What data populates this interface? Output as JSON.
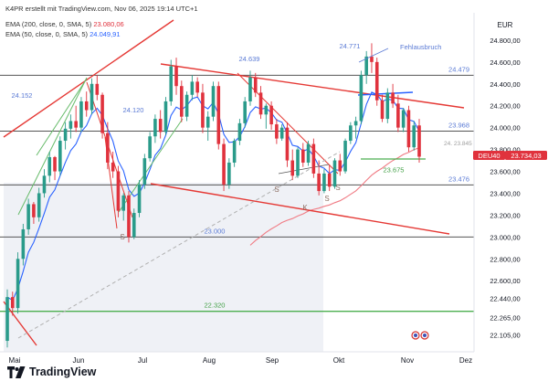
{
  "header": {
    "line1": "K4PR erstellt mit TradingView.com, Nov 06, 2025 19:14 UTC+1",
    "ema200_label": "EMA (200, close, 0, SMA, 5)",
    "ema200_value": "23.080,06",
    "ema50_label": "EMA (50, close, 0, SMA, 5)",
    "ema50_value": "24.049,91"
  },
  "brand": {
    "name": "TradingView",
    "logo_icon": "tradingview-logo-icon"
  },
  "colors": {
    "up": "#2a9b8a",
    "down": "#e0323d",
    "ema50": "#2962ff",
    "ema200": "#f07b84",
    "trend": "#e53935",
    "green_line": "#4caf50",
    "level_line": "#555555",
    "label_blue": "#5b7bd5",
    "label_green": "#43a047"
  },
  "chart_data": {
    "type": "candlestick",
    "symbol": "DEU40",
    "currency": "EUR",
    "last_price": "23.734,03",
    "x_ticks": [
      "Mai",
      "Jun",
      "Jul",
      "Aug",
      "Sep",
      "Okt",
      "Nov",
      "Dez"
    ],
    "y_ticks": [
      "24.800,00",
      "24.600,00",
      "24.400,00",
      "24.200,00",
      "24.000,00",
      "23.800,00",
      "23.600,00",
      "23.400,00",
      "23.200,00",
      "23.000,00",
      "22.800,00",
      "22.600,00",
      "22.440,00",
      "22.265,00",
      "22.105,00"
    ],
    "y_tick_values": [
      24800,
      24600,
      24400,
      24200,
      24000,
      23800,
      23600,
      23400,
      23200,
      23000,
      22800,
      22600,
      22440,
      22265,
      22105
    ],
    "ylim": [
      21950,
      25050
    ],
    "horizontal_levels": [
      {
        "value": 24479,
        "label": "24.479",
        "color": "label_blue"
      },
      {
        "value": 23968,
        "label": "23.968",
        "color": "label_blue"
      },
      {
        "value": 23476,
        "label": "23.476",
        "color": "label_blue"
      },
      {
        "value": 23000,
        "label": "23.000",
        "color": "label_blue"
      },
      {
        "value": 22320,
        "label": "22.320",
        "color": "label_green"
      },
      {
        "value": 23675,
        "label": "23.675",
        "color": "label_green"
      }
    ],
    "annotations": [
      {
        "text": "24.771",
        "kind": "price"
      },
      {
        "text": "24.639",
        "kind": "price"
      },
      {
        "text": "24.152",
        "kind": "price"
      },
      {
        "text": "24.120",
        "kind": "price"
      },
      {
        "text": "24. 23.845",
        "kind": "price"
      },
      {
        "text": "Fehlausbruch",
        "kind": "note"
      },
      {
        "text": "S",
        "kind": "marker"
      },
      {
        "text": "S",
        "kind": "marker"
      },
      {
        "text": "S",
        "kind": "marker"
      },
      {
        "text": "S",
        "kind": "marker"
      },
      {
        "text": "K",
        "kind": "marker"
      }
    ],
    "series": [
      {
        "name": "EMA (50, close, 0, SMA, 5)",
        "last": 24049.91
      },
      {
        "name": "EMA (200, close, 0, SMA, 5)",
        "last": 23080.06
      },
      {
        "name": "DEU40",
        "ohlc": [
          [
            22050,
            22520,
            21990,
            22450
          ],
          [
            22450,
            22500,
            22280,
            22350
          ],
          [
            22350,
            22860,
            22300,
            22800
          ],
          [
            22800,
            23120,
            22740,
            23070
          ],
          [
            23070,
            23350,
            23020,
            23300
          ],
          [
            23300,
            23320,
            23120,
            23180
          ],
          [
            23180,
            23450,
            23140,
            23400
          ],
          [
            23400,
            23620,
            23360,
            23560
          ],
          [
            23560,
            23780,
            23500,
            23730
          ],
          [
            23730,
            23740,
            23520,
            23600
          ],
          [
            23600,
            23920,
            23560,
            23880
          ],
          [
            23880,
            24050,
            23800,
            23990
          ],
          [
            23990,
            24120,
            23900,
            24060
          ],
          [
            24060,
            24200,
            23960,
            24000
          ],
          [
            24000,
            24280,
            23960,
            24240
          ],
          [
            24240,
            24330,
            24100,
            24160
          ],
          [
            24160,
            24450,
            24120,
            24400
          ],
          [
            24400,
            24480,
            24250,
            24300
          ],
          [
            24300,
            24320,
            23900,
            23950
          ],
          [
            23950,
            24050,
            23620,
            23680
          ],
          [
            23680,
            23780,
            23540,
            23600
          ],
          [
            23600,
            23650,
            23180,
            23240
          ],
          [
            23240,
            23400,
            23150,
            23380
          ],
          [
            23380,
            23420,
            22950,
            23000
          ],
          [
            23000,
            23260,
            22980,
            23220
          ],
          [
            23220,
            23520,
            23180,
            23480
          ],
          [
            23480,
            23760,
            23440,
            23720
          ],
          [
            23720,
            23960,
            23690,
            23920
          ],
          [
            23920,
            24120,
            23860,
            24080
          ],
          [
            24080,
            24160,
            23900,
            23960
          ],
          [
            23960,
            24280,
            23930,
            24240
          ],
          [
            24240,
            24620,
            24200,
            24560
          ],
          [
            24560,
            24640,
            24300,
            24380
          ],
          [
            24380,
            24430,
            24050,
            24100
          ],
          [
            24100,
            24330,
            24060,
            24300
          ],
          [
            24300,
            24480,
            24250,
            24420
          ],
          [
            24420,
            24460,
            24280,
            24320
          ],
          [
            24320,
            24400,
            23950,
            24000
          ],
          [
            24000,
            24150,
            23880,
            24100
          ],
          [
            24100,
            24420,
            24060,
            24380
          ],
          [
            24380,
            24420,
            23800,
            23850
          ],
          [
            23850,
            23900,
            23420,
            23480
          ],
          [
            23480,
            23720,
            23440,
            23680
          ],
          [
            23680,
            23900,
            23640,
            23880
          ],
          [
            23880,
            24080,
            23840,
            24040
          ],
          [
            24040,
            24280,
            24000,
            24240
          ],
          [
            24240,
            24520,
            24200,
            24460
          ],
          [
            24460,
            24500,
            24280,
            24320
          ],
          [
            24320,
            24380,
            24080,
            24120
          ],
          [
            24120,
            24220,
            23990,
            24200
          ],
          [
            24200,
            24240,
            23980,
            24030
          ],
          [
            24030,
            24080,
            23850,
            23900
          ],
          [
            23900,
            24030,
            23880,
            24000
          ],
          [
            24000,
            24050,
            23640,
            23700
          ],
          [
            23700,
            23800,
            23520,
            23560
          ],
          [
            23560,
            23820,
            23540,
            23800
          ],
          [
            23800,
            23860,
            23640,
            23680
          ],
          [
            23680,
            23880,
            23650,
            23850
          ],
          [
            23850,
            23900,
            23540,
            23580
          ],
          [
            23580,
            23700,
            23380,
            23420
          ],
          [
            23420,
            23620,
            23400,
            23580
          ],
          [
            23580,
            23660,
            23420,
            23460
          ],
          [
            23460,
            23720,
            23440,
            23700
          ],
          [
            23700,
            23760,
            23560,
            23600
          ],
          [
            23600,
            23900,
            23580,
            23880
          ],
          [
            23880,
            24050,
            23850,
            24020
          ],
          [
            24020,
            24100,
            23900,
            24060
          ],
          [
            24060,
            24520,
            24030,
            24480
          ],
          [
            24480,
            24700,
            24400,
            24650
          ],
          [
            24650,
            24771,
            24500,
            24600
          ],
          [
            24600,
            24640,
            24200,
            24250
          ],
          [
            24250,
            24300,
            24050,
            24080
          ],
          [
            24080,
            24360,
            24040,
            24320
          ],
          [
            24320,
            24400,
            24180,
            24220
          ],
          [
            24220,
            24300,
            23960,
            24000
          ],
          [
            24000,
            24180,
            23960,
            24160
          ],
          [
            24160,
            24200,
            23780,
            23820
          ],
          [
            23820,
            24060,
            23790,
            24020
          ],
          [
            24020,
            24080,
            23680,
            23734
          ]
        ]
      }
    ],
    "title": "",
    "xlabel": "",
    "ylabel": "",
    "grid": false,
    "legend": "top-left"
  }
}
